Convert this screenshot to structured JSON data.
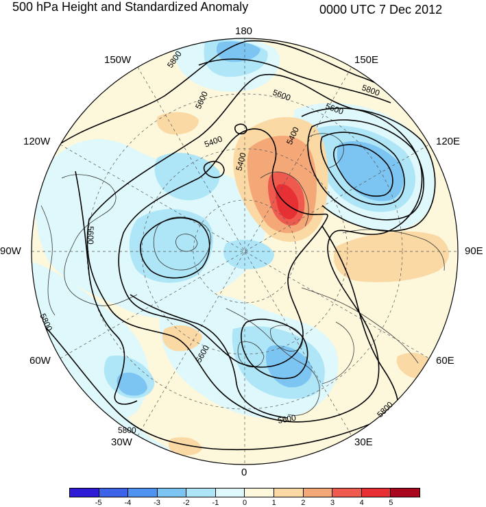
{
  "title": {
    "left": "500 hPa Height and Standardized Anomaly",
    "right": "0000 UTC 7 Dec 2012"
  },
  "longitude_labels": {
    "lon_180": "180",
    "lon_150W": "150W",
    "lon_150E": "150E",
    "lon_120W": "120W",
    "lon_120E": "120E",
    "lon_90W": "90W",
    "lon_90E": "90E",
    "lon_60W": "60W",
    "lon_60E": "60E",
    "lon_30W": "30W",
    "lon_30E": "30E",
    "lon_0": "0"
  },
  "contour_labels": {
    "c5800_nw": "5800",
    "c5600_nw": "5600",
    "c5400_nw": "5400",
    "c5400_n": "5400",
    "c5400_ne": "5400",
    "c5600_ne": "5600",
    "c5800_ne": "5800",
    "c5600_us": "5600",
    "c5800_w": "5800",
    "c5600_s": "5600",
    "c5600_se": "5600",
    "c5800_se": "5800",
    "c5800_sw": "5800"
  },
  "colorbar": {
    "ticks": [
      "-5",
      "-4",
      "-3",
      "-2",
      "-1",
      "0",
      "1",
      "2",
      "3",
      "4",
      "5"
    ],
    "colors": [
      "#2f1bd6",
      "#3c63e8",
      "#4f92f0",
      "#7cc4f2",
      "#aee6f7",
      "#def8fb",
      "#fdf7dc",
      "#fbd9a5",
      "#f4a878",
      "#ef5a4f",
      "#e63033",
      "#a8071e"
    ]
  },
  "colors": {
    "positive_anomaly_strong": "#e63033",
    "positive_anomaly_moderate": "#f4a878",
    "positive_anomaly_weak": "#fbd9a5",
    "negative_anomaly_weak": "#aee6f7",
    "negative_anomaly_moderate": "#7cc4f2",
    "neutral": "#fdf7dc"
  }
}
